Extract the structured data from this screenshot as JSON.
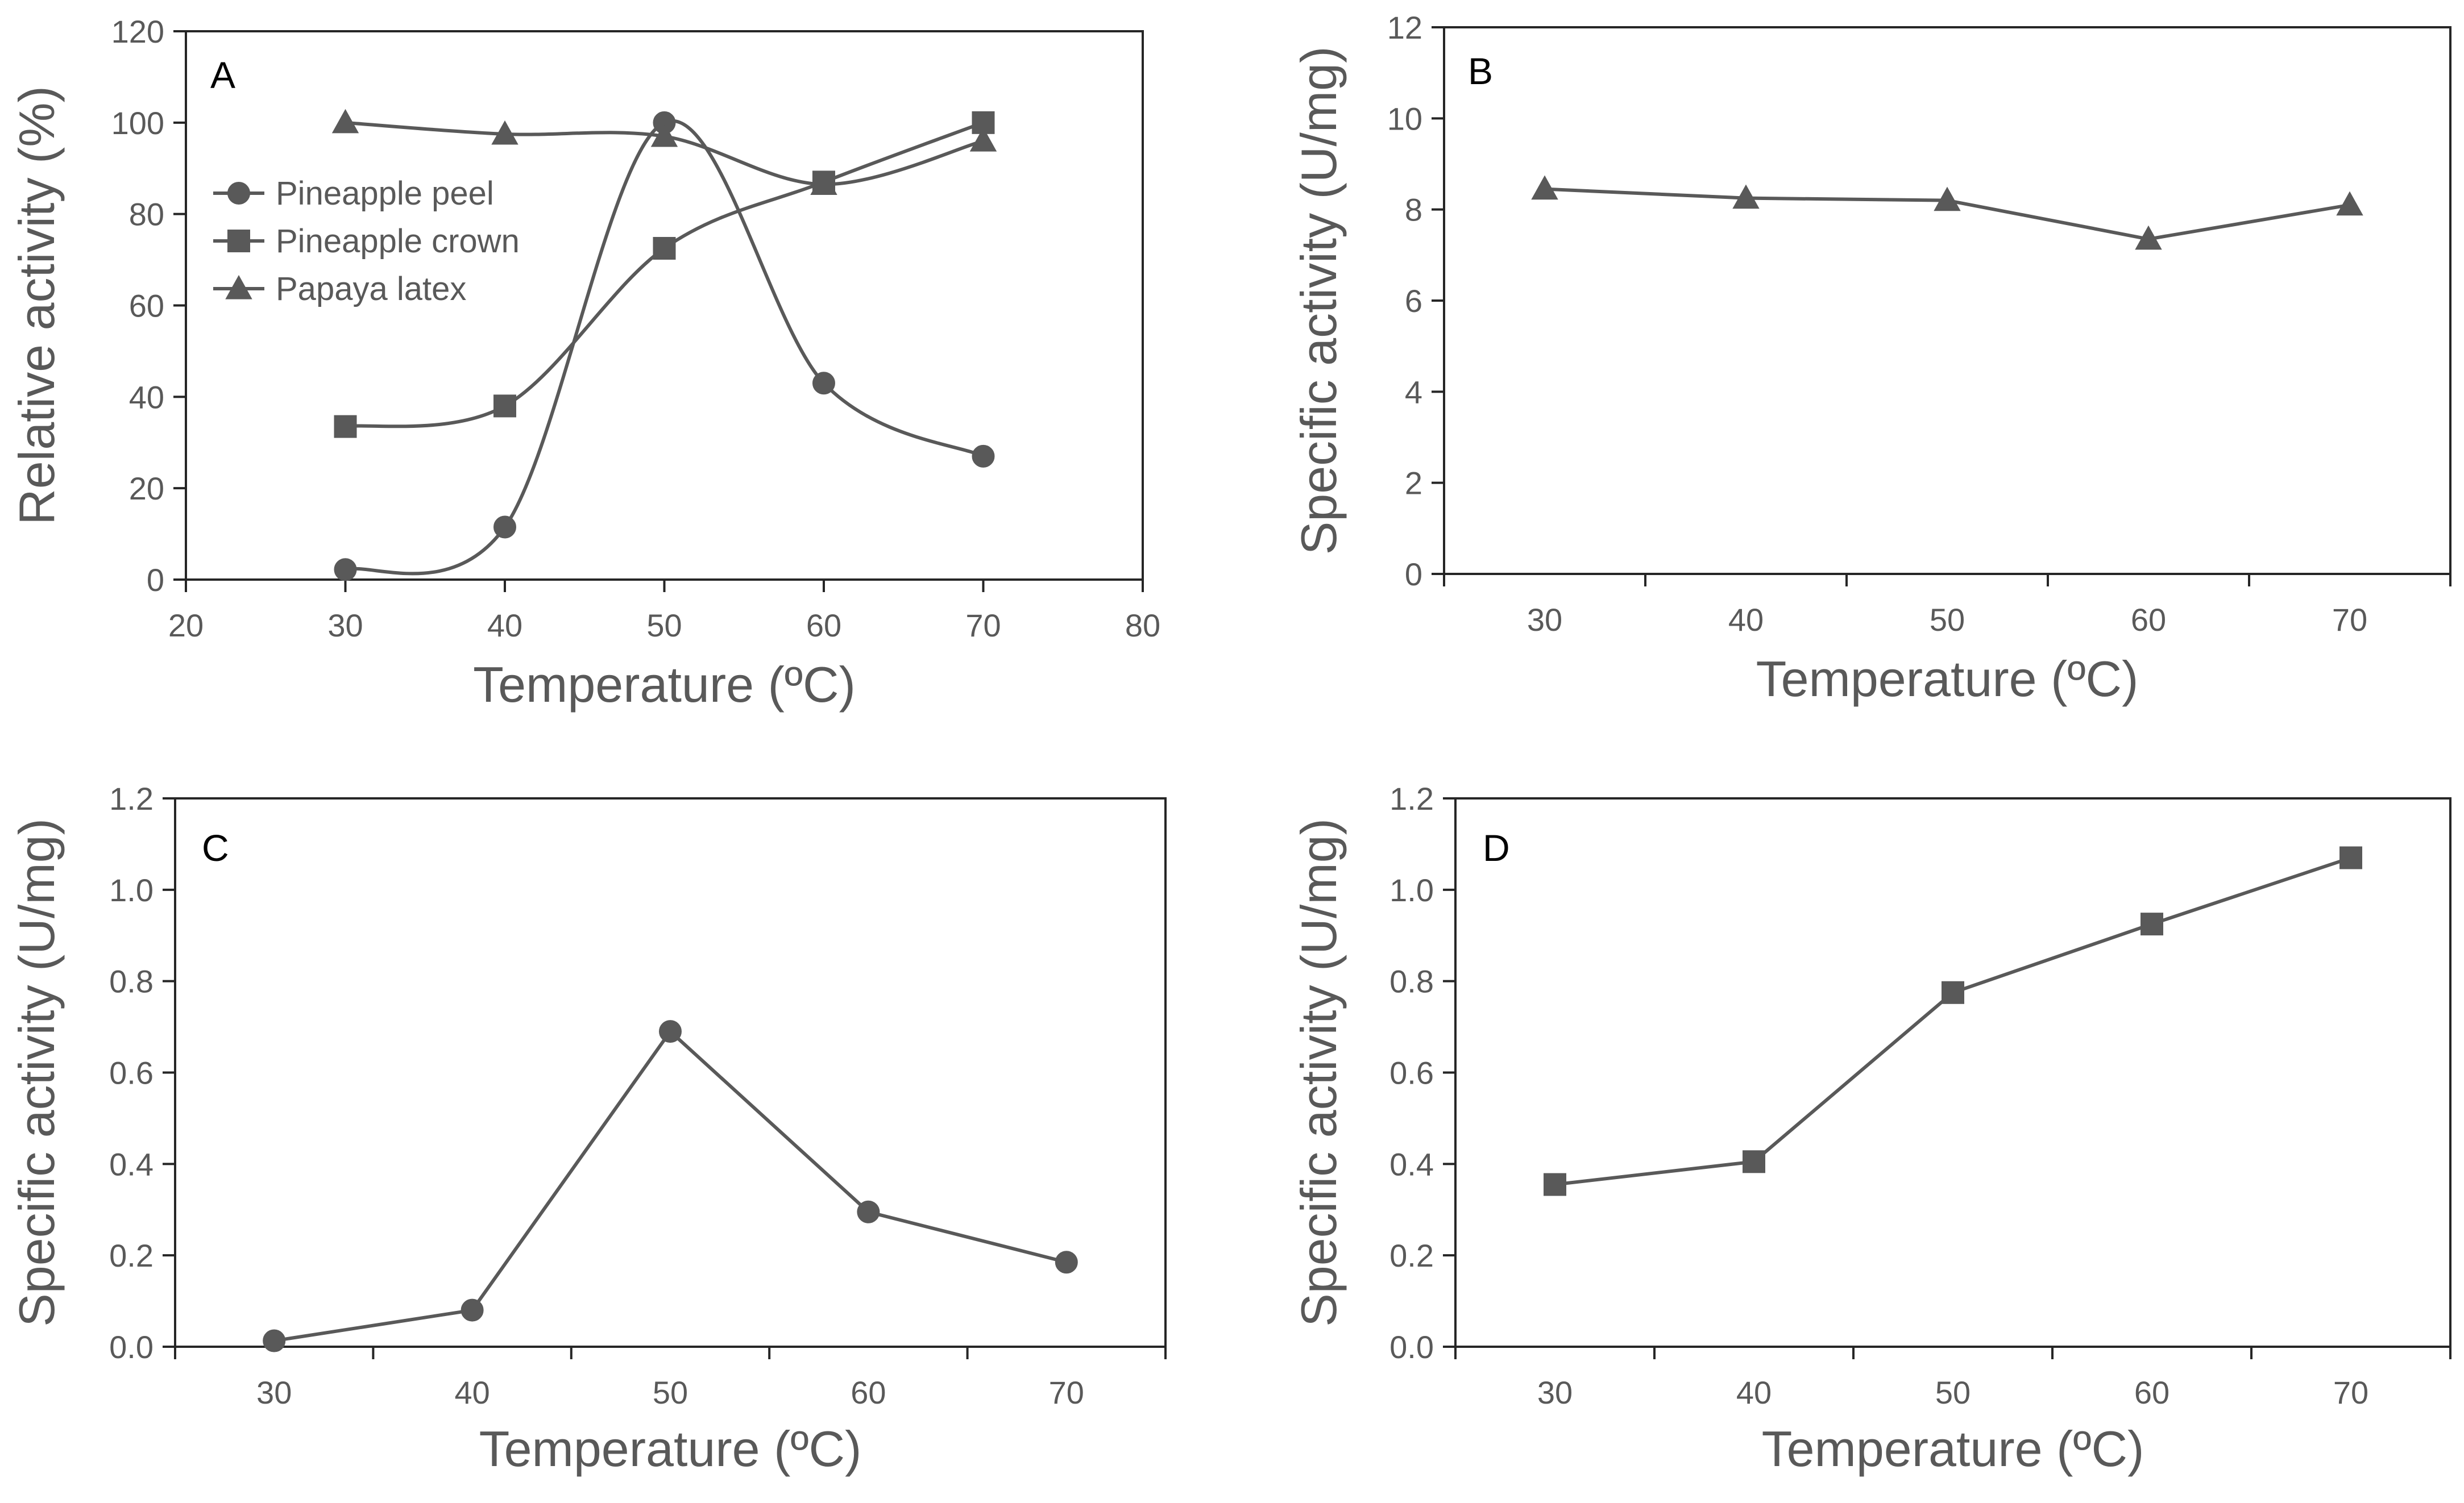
{
  "chart_data": [
    {
      "panel": "A",
      "type": "line",
      "smooth": true,
      "xlabel": "Temperature (ºC)",
      "ylabel": "Relative activity (%)",
      "xlim": [
        20,
        80
      ],
      "ylim": [
        0,
        120
      ],
      "xticks": [
        20,
        30,
        40,
        50,
        60,
        70,
        80
      ],
      "yticks": [
        0,
        20,
        40,
        60,
        80,
        100,
        120
      ],
      "x": [
        30,
        40,
        50,
        60,
        70
      ],
      "series": [
        {
          "name": "Pineapple peel",
          "marker": "circle",
          "values": [
            2.2,
            11.5,
            100,
            43,
            27
          ]
        },
        {
          "name": "Pineapple crown",
          "marker": "square",
          "values": [
            33.5,
            38,
            72.5,
            87,
            100
          ]
        },
        {
          "name": "Papaya latex",
          "marker": "triangle",
          "values": [
            100,
            97.5,
            97,
            86.5,
            96
          ]
        }
      ],
      "legend_position": "upper-left"
    },
    {
      "panel": "B",
      "type": "line",
      "xlabel": "Temperature (ºC)",
      "ylabel": "Specific activity (U/mg)",
      "categories": [
        "30",
        "40",
        "50",
        "60",
        "70"
      ],
      "ylim": [
        0,
        12
      ],
      "yticks": [
        0,
        2,
        4,
        6,
        8,
        10,
        12
      ],
      "series": [
        {
          "name": "Papaya latex",
          "marker": "triangle",
          "values": [
            8.45,
            8.25,
            8.2,
            7.35,
            8.1
          ]
        }
      ]
    },
    {
      "panel": "C",
      "type": "line",
      "xlabel": "Temperature (ºC)",
      "ylabel": "Specific activity (U/mg)",
      "categories": [
        "30",
        "40",
        "50",
        "60",
        "70"
      ],
      "ylim": [
        0,
        1.2
      ],
      "yticks": [
        "0.0",
        "0.2",
        "0.4",
        "0.6",
        "0.8",
        "1.0",
        "1.2"
      ],
      "series": [
        {
          "name": "Pineapple peel",
          "marker": "circle",
          "values": [
            0.013,
            0.08,
            0.69,
            0.295,
            0.185
          ]
        }
      ]
    },
    {
      "panel": "D",
      "type": "line",
      "xlabel": "Temperature (ºC)",
      "ylabel": "Specific activity (U/mg)",
      "categories": [
        "30",
        "40",
        "50",
        "60",
        "70"
      ],
      "ylim": [
        0,
        1.2
      ],
      "yticks": [
        "0.0",
        "0.2",
        "0.4",
        "0.6",
        "0.8",
        "1.0",
        "1.2"
      ],
      "series": [
        {
          "name": "Pineapple crown",
          "marker": "square",
          "values": [
            0.355,
            0.405,
            0.775,
            0.925,
            1.07
          ]
        }
      ]
    }
  ],
  "colors": {
    "series": "#595959",
    "axis": "#262626",
    "text": "#595959"
  }
}
